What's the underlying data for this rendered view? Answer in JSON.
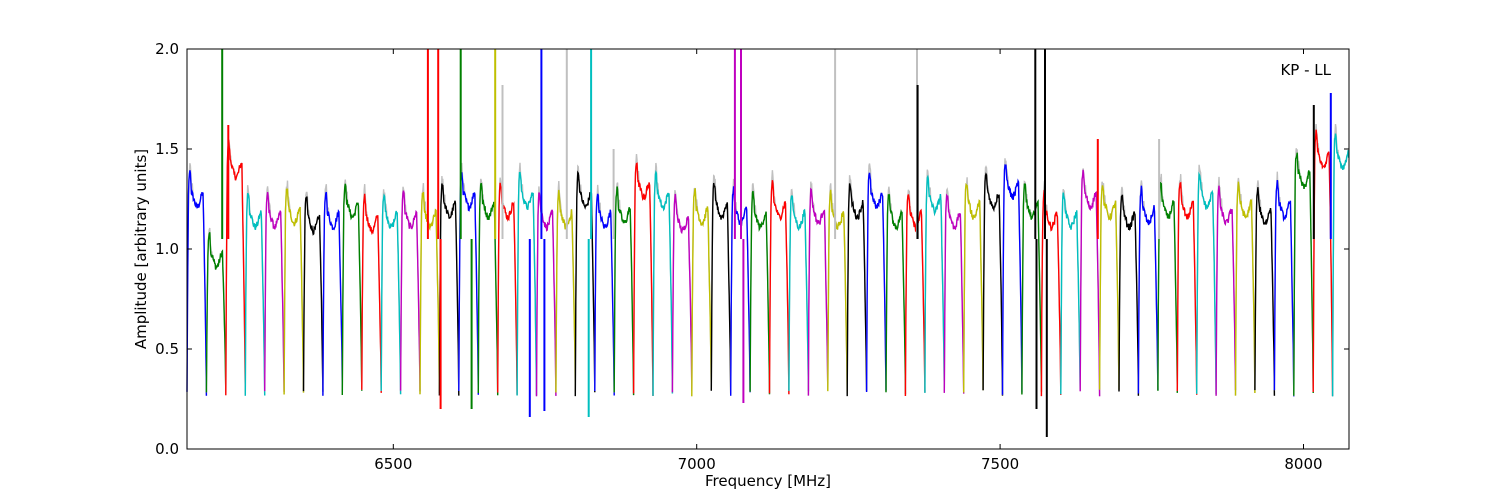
{
  "chart_data": {
    "type": "line",
    "title": "",
    "annotation": "KP - LL",
    "xlabel": "Frequency [MHz]",
    "ylabel": "Amplitude [arbitrary units]",
    "xlim": [
      6160,
      8075
    ],
    "ylim": [
      0.0,
      2.0
    ],
    "xticks": [
      6500,
      7000,
      7500,
      8000
    ],
    "xtick_labels": [
      "6500",
      "7000",
      "7500",
      "8000"
    ],
    "yticks": [
      0.0,
      0.5,
      1.0,
      1.5,
      2.0
    ],
    "ytick_labels": [
      "0.0",
      "0.5",
      "1.0",
      "1.5",
      "2.0"
    ],
    "grid": false,
    "legend": "none",
    "background_series_color": "#c0c0c0",
    "channel_color_cycle": [
      "#0000ff",
      "#008000",
      "#ff0000",
      "#00bfbf",
      "#bf00bf",
      "#bfbf00",
      "#000000"
    ],
    "channel_width_mhz": 32,
    "channel_start_mhz": 6160,
    "channel_count": 60,
    "channel_levels": [
      1.3,
      1.0,
      1.45,
      1.2,
      1.2,
      1.22,
      1.18,
      1.2,
      1.25,
      1.18,
      1.2,
      1.2,
      1.2,
      1.25,
      1.3,
      1.25,
      1.25,
      1.3,
      1.2,
      1.2,
      1.3,
      1.2,
      1.22,
      1.35,
      1.3,
      1.18,
      1.22,
      1.25,
      1.22,
      1.2,
      1.25,
      1.2,
      1.22,
      1.2,
      1.25,
      1.3,
      1.2,
      1.2,
      1.28,
      1.2,
      1.25,
      1.3,
      1.35,
      1.25,
      1.2,
      1.2,
      1.3,
      1.25,
      1.2,
      1.22,
      1.25,
      1.25,
      1.3,
      1.22,
      1.25,
      1.22,
      1.25,
      1.4,
      1.5,
      1.5
    ],
    "channel_min": 0.28,
    "spikes": [
      {
        "x": 6218,
        "y": 2.0,
        "color": "#008000"
      },
      {
        "x": 6228,
        "y": 1.62,
        "color": "#ff0000"
      },
      {
        "x": 6557,
        "y": 2.0,
        "color": "#ff0000"
      },
      {
        "x": 6574,
        "y": 2.0,
        "color": "#ff0000"
      },
      {
        "x": 6578,
        "y": 0.2,
        "color": "#ff0000"
      },
      {
        "x": 6611,
        "y": 2.0,
        "color": "#008000"
      },
      {
        "x": 6629,
        "y": 0.2,
        "color": "#008000"
      },
      {
        "x": 6668,
        "y": 2.0,
        "color": "#bfbf00"
      },
      {
        "x": 6680,
        "y": 1.82,
        "color": "#c0c0c0"
      },
      {
        "x": 6725,
        "y": 0.16,
        "color": "#0000ff"
      },
      {
        "x": 6744,
        "y": 2.0,
        "color": "#0000ff"
      },
      {
        "x": 6749,
        "y": 0.19,
        "color": "#0000ff"
      },
      {
        "x": 6786,
        "y": 2.0,
        "color": "#c0c0c0"
      },
      {
        "x": 6822,
        "y": 0.16,
        "color": "#00bfbf"
      },
      {
        "x": 6826,
        "y": 2.0,
        "color": "#00bfbf"
      },
      {
        "x": 6863,
        "y": 1.5,
        "color": "#c0c0c0"
      },
      {
        "x": 7063,
        "y": 2.0,
        "color": "#bf00bf"
      },
      {
        "x": 7073,
        "y": 2.0,
        "color": "#bf00bf"
      },
      {
        "x": 7077,
        "y": 0.23,
        "color": "#bf00bf"
      },
      {
        "x": 7228,
        "y": 2.0,
        "color": "#c0c0c0"
      },
      {
        "x": 7363,
        "y": 2.0,
        "color": "#c0c0c0"
      },
      {
        "x": 7364,
        "y": 1.82,
        "color": "#000000"
      },
      {
        "x": 7558,
        "y": 2.0,
        "color": "#000000"
      },
      {
        "x": 7560,
        "y": 0.2,
        "color": "#000000"
      },
      {
        "x": 7574,
        "y": 2.0,
        "color": "#000000"
      },
      {
        "x": 7577,
        "y": 0.06,
        "color": "#000000"
      },
      {
        "x": 7661,
        "y": 1.55,
        "color": "#ff0000"
      },
      {
        "x": 7762,
        "y": 1.55,
        "color": "#c0c0c0"
      },
      {
        "x": 8017,
        "y": 1.72,
        "color": "#000000"
      },
      {
        "x": 8045,
        "y": 1.78,
        "color": "#0000ff"
      }
    ]
  }
}
